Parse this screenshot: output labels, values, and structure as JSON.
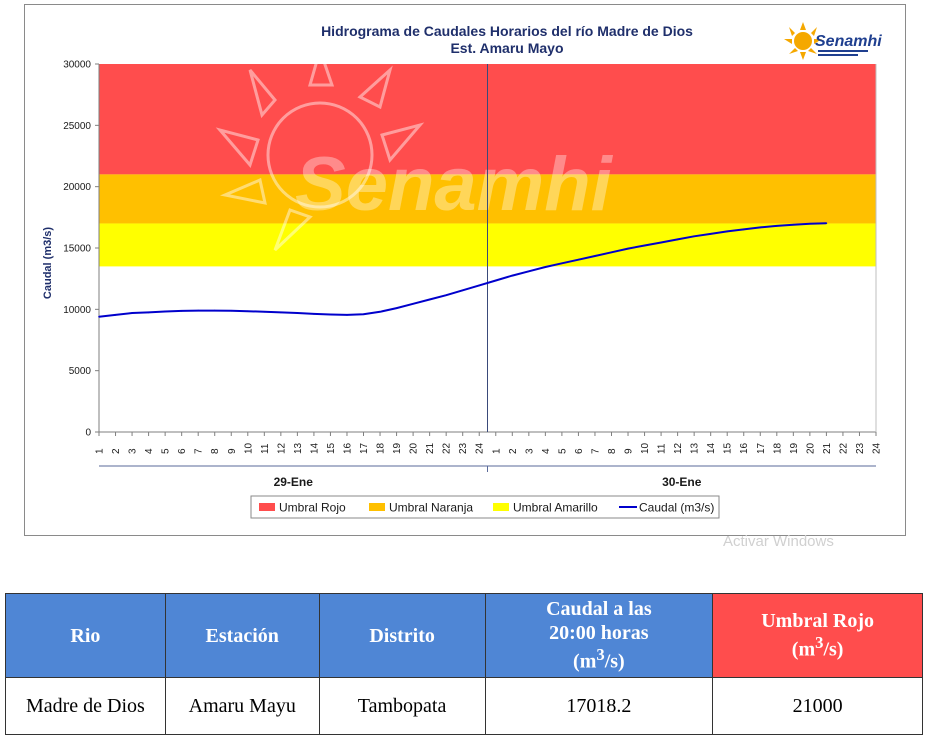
{
  "colors": {
    "rojo": "#ff4d4d",
    "naranja": "#ffc000",
    "amarillo": "#ffff00",
    "caudal": "#0000cc",
    "title": "#1f2f6b",
    "table_header": "#4f86d5",
    "table_header_red": "#ff4d4d"
  },
  "logo": {
    "text": "Senamhi",
    "icon": "sun-icon"
  },
  "watermark": {
    "text": "Senamhi",
    "os_text": "Activar Windows"
  },
  "chart_data": {
    "type": "line",
    "title": "Hidrograma de Caudales Horarios del río Madre de Dios",
    "subtitle": "Est. Amaru Mayo",
    "ylabel": "Caudal  (m3/s)",
    "xlabel": "",
    "ylim": [
      0,
      30000
    ],
    "yticks": [
      0,
      5000,
      10000,
      15000,
      20000,
      25000,
      30000
    ],
    "day_groups": [
      {
        "label": "29-Ene",
        "hours": [
          "1",
          "2",
          "3",
          "4",
          "5",
          "6",
          "7",
          "8",
          "9",
          "10",
          "11",
          "12",
          "13",
          "14",
          "15",
          "16",
          "17",
          "18",
          "19",
          "20",
          "21",
          "22",
          "23",
          "24"
        ]
      },
      {
        "label": "30-Ene",
        "hours": [
          "1",
          "2",
          "3",
          "4",
          "5",
          "6",
          "7",
          "8",
          "9",
          "10",
          "11",
          "12",
          "13",
          "14",
          "15",
          "16",
          "17",
          "18",
          "19",
          "20",
          "21",
          "22",
          "23",
          "24"
        ]
      }
    ],
    "thresholds": [
      {
        "name": "Umbral Rojo",
        "from": 21000,
        "to": 30000,
        "color": "#ff4d4d"
      },
      {
        "name": "Umbral Naranja",
        "from": 17000,
        "to": 21000,
        "color": "#ffc000"
      },
      {
        "name": "Umbral Amarillo",
        "from": 13500,
        "to": 17000,
        "color": "#ffff00"
      }
    ],
    "series": [
      {
        "name": "Caudal (m3/s)",
        "color": "#0000cc",
        "values": [
          9400,
          9550,
          9700,
          9750,
          9820,
          9870,
          9900,
          9900,
          9880,
          9850,
          9800,
          9750,
          9700,
          9630,
          9580,
          9550,
          9600,
          9800,
          10100,
          10450,
          10800,
          11150,
          11550,
          11950,
          12350,
          12750,
          13100,
          13450,
          13750,
          14050,
          14350,
          14650,
          14950,
          15200,
          15450,
          15700,
          15950,
          16150,
          16350,
          16520,
          16680,
          16800,
          16900,
          16980,
          17018.2
        ]
      }
    ],
    "legend": [
      "Umbral Rojo",
      "Umbral Naranja",
      "Umbral Amarillo",
      "Caudal (m3/s)"
    ],
    "legend_position": "bottom",
    "grid": false
  },
  "table": {
    "headers": [
      "Rio",
      "Estación",
      "Distrito",
      "Caudal a las 20:00 horas (m³/s)",
      "Umbral Rojo (m³/s)"
    ],
    "header_caudal_line1": "Caudal a las",
    "header_caudal_line2": "20:00 horas",
    "header_caudal_unit_base": "(m",
    "header_caudal_unit_sup": "3",
    "header_caudal_unit_end": "/s)",
    "header_umbral_line1": "Umbral Rojo",
    "header_umbral_unit_base": "(m",
    "header_umbral_unit_sup": "3",
    "header_umbral_unit_end": "/s)",
    "rows": [
      [
        "Madre de Dios",
        "Amaru Mayu",
        "Tambopata",
        "17018.2",
        "21000"
      ]
    ]
  }
}
